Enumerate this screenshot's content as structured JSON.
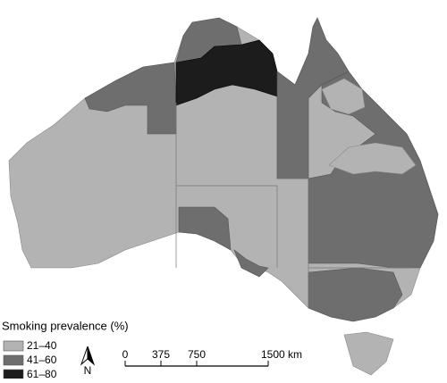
{
  "legend": {
    "title": "Smoking prevalence (%)",
    "items": [
      {
        "label": "21–40",
        "color": "#b3b3b3"
      },
      {
        "label": "41–60",
        "color": "#6e6e6e"
      },
      {
        "label": "61–80",
        "color": "#1c1c1c"
      }
    ]
  },
  "north_arrow": {
    "label": "N"
  },
  "scale_bar": {
    "labels": [
      "0",
      "375",
      "750",
      "1500 km"
    ]
  }
}
